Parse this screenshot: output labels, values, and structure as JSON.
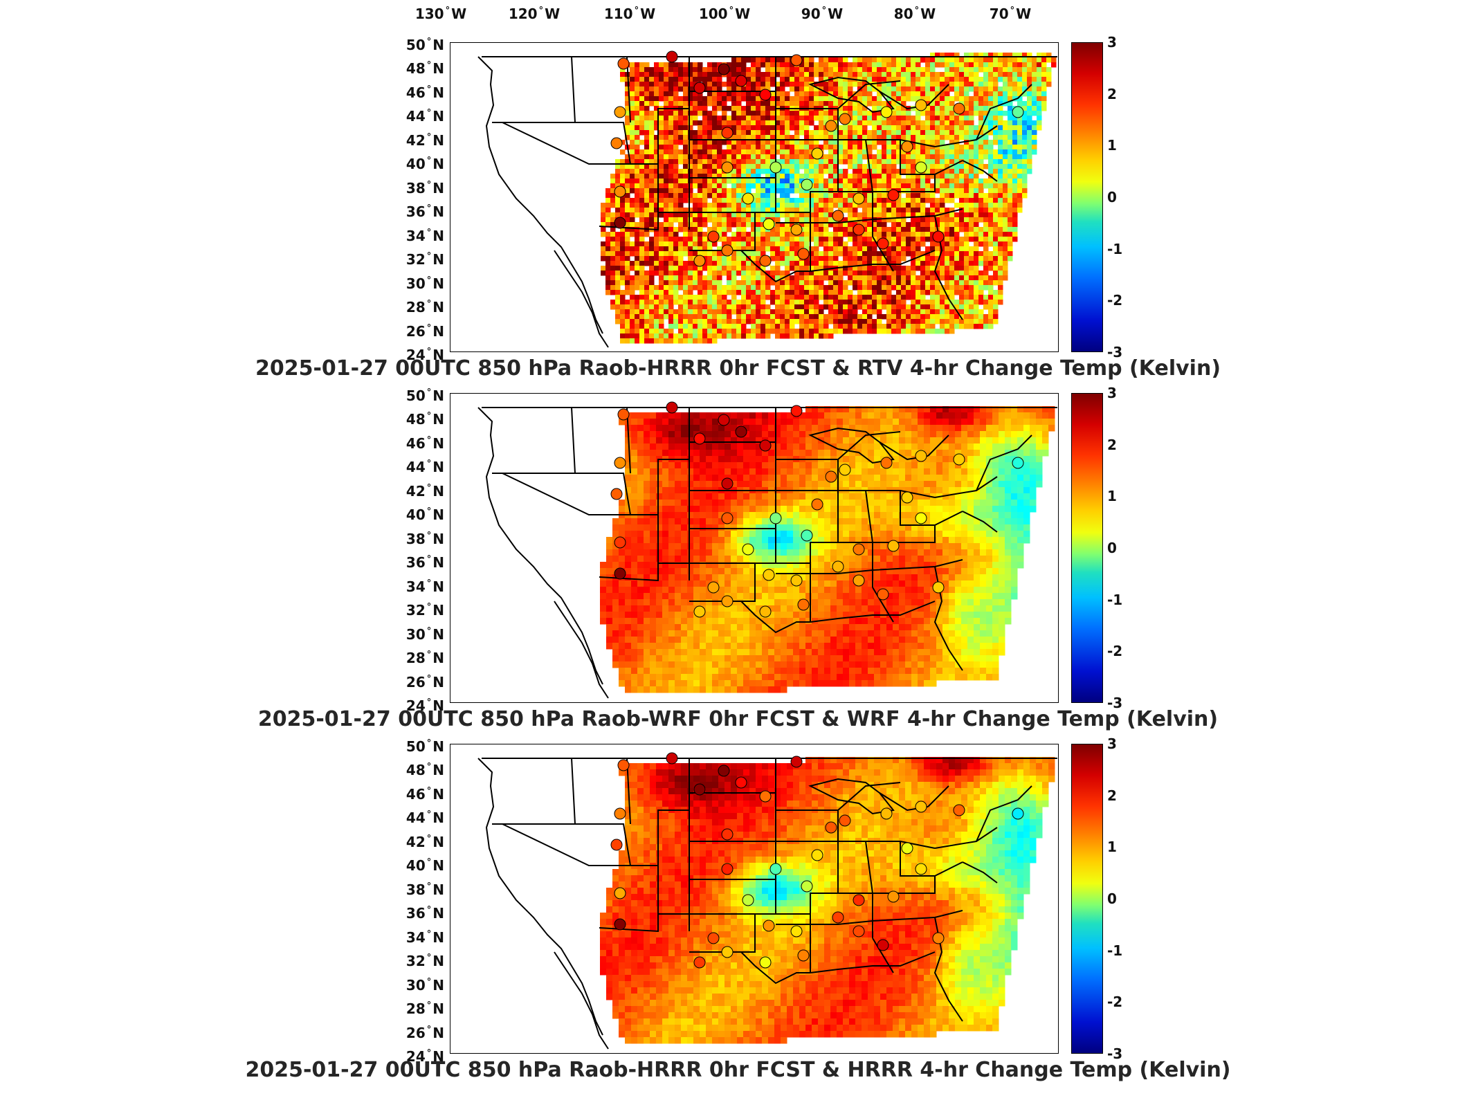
{
  "longitude_labels": [
    "130",
    "120",
    "110",
    "100",
    "90",
    "80",
    "70"
  ],
  "longitude_suffix": "W",
  "latitude_labels": [
    "50",
    "48",
    "46",
    "44",
    "42",
    "40",
    "38",
    "36",
    "34",
    "32",
    "30",
    "28",
    "26",
    "24"
  ],
  "latitude_suffix": "N",
  "colorbar": {
    "ticks": [
      "3",
      "2",
      "1",
      "0",
      "-1",
      "-2",
      "-3"
    ],
    "range": [
      -3,
      3
    ],
    "colormap": "jet"
  },
  "panels": [
    {
      "title": "2025-01-27 00UTC 850 hPa Raob-HRRR 0hr FCST & RTV 4-hr Change Temp (Kelvin)"
    },
    {
      "title": "2025-01-27 00UTC 850 hPa Raob-WRF 0hr FCST & WRF 4-hr Change Temp (Kelvin)"
    },
    {
      "title": "2025-01-27 00UTC 850 hPa Raob-HRRR 0hr FCST & HRRR 4-hr Change Temp (Kelvin)"
    }
  ]
}
